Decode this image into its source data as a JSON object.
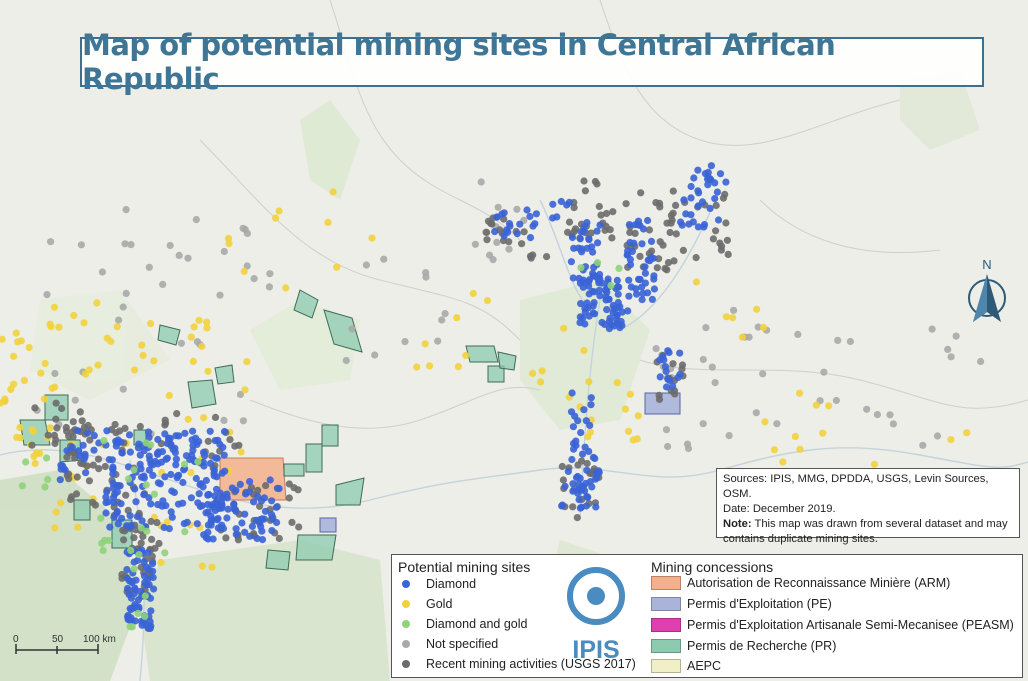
{
  "title": "Map of potential mining sites in Central African Republic",
  "sources": {
    "line1": "Sources: IPIS, MMG, DPDDA, USGS, Levin Sources, OSM.",
    "line2": "Date: December 2019.",
    "note_label": "Note:",
    "note_text": "This map was drawn from several dataset and may contains duplicate mining sites."
  },
  "legend": {
    "sites_title": "Potential mining sites",
    "sites": [
      {
        "label": "Diamond",
        "color": "#3a63d6"
      },
      {
        "label": "Gold",
        "color": "#f2d23c"
      },
      {
        "label": "Diamond and gold",
        "color": "#8fd27a"
      },
      {
        "label": "Not specified",
        "color": "#a9a9a9"
      },
      {
        "label": "Recent mining activities (USGS 2017)",
        "color": "#6b6b6b"
      }
    ],
    "concessions_title": "Mining concessions",
    "concessions": [
      {
        "label": "Autorisation de Reconnaissance Minière (ARM)",
        "color": "#f4b08c"
      },
      {
        "label": "Permis d'Exploitation (PE)",
        "color": "#aab4db"
      },
      {
        "label": "Permis d'Exploitation Artisanale Semi-Mecanisee (PEASM)",
        "color": "#e03fb0"
      },
      {
        "label": "Permis de Recherche (PR)",
        "color": "#8dcbb0"
      },
      {
        "label": "AEPC",
        "color": "#f1efc6"
      }
    ],
    "logo_text": "IPIS"
  },
  "scale": {
    "labels": [
      "0",
      "50",
      "100 km"
    ]
  },
  "north_label": "N",
  "colors": {
    "title": "#3f7695",
    "frame": "#3d6f8e",
    "logo": "#4a8bc0"
  }
}
